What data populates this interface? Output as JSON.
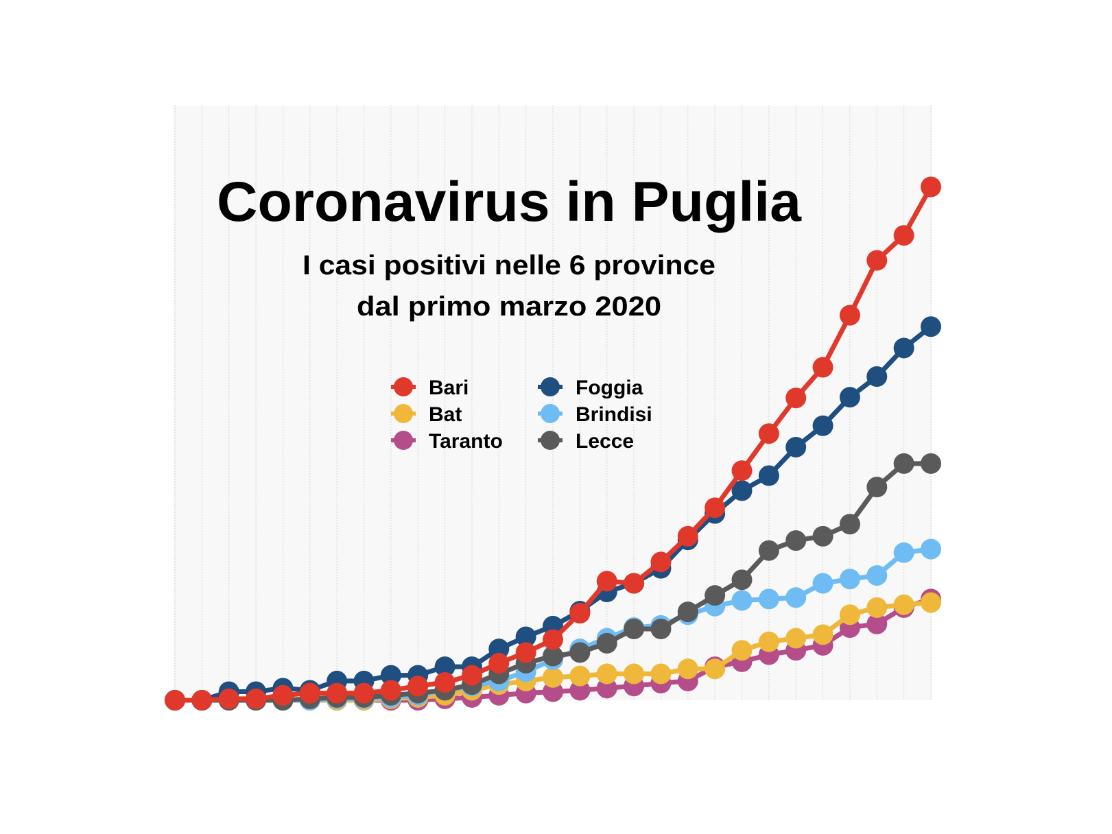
{
  "chart_data": {
    "type": "line",
    "title": "Coronavirus in Puglia",
    "subtitle": [
      "I casi positivi nelle 6 province",
      "dal primo marzo 2020"
    ],
    "categories": [
      null,
      null,
      null,
      null,
      null,
      null,
      null,
      null,
      null,
      null,
      null,
      null,
      null,
      null,
      null,
      null,
      null,
      null,
      null,
      null,
      null,
      null,
      null,
      null,
      null,
      null,
      null,
      null,
      null
    ],
    "ylim": [
      0,
      834
    ],
    "grid": true,
    "series": [
      {
        "name": "Bari",
        "color": "#e0392b",
        "values": [
          0,
          0,
          2,
          2,
          7,
          10,
          10,
          10,
          14,
          20,
          25,
          35,
          52,
          67,
          85,
          122,
          167,
          164,
          194,
          230,
          270,
          322,
          374,
          424,
          467,
          540,
          617,
          652,
          720
        ]
      },
      {
        "name": "Bat",
        "color": "#f0b83a",
        "values": [
          0,
          0,
          0,
          0,
          0,
          0,
          0,
          0,
          2,
          4,
          7,
          14,
          22,
          27,
          32,
          34,
          37,
          37,
          37,
          44,
          44,
          70,
          82,
          87,
          92,
          120,
          130,
          134,
          137
        ]
      },
      {
        "name": "Taranto",
        "color": "#b44d8a",
        "values": [
          0,
          0,
          0,
          0,
          0,
          0,
          0,
          0,
          0,
          0,
          2,
          4,
          7,
          10,
          12,
          14,
          17,
          20,
          24,
          27,
          47,
          54,
          64,
          70,
          77,
          102,
          107,
          130,
          142
        ]
      },
      {
        "name": "Foggia",
        "color": "#1f4e80",
        "values": [
          0,
          0,
          12,
          12,
          17,
          14,
          27,
          27,
          35,
          35,
          47,
          47,
          72,
          89,
          104,
          125,
          152,
          164,
          185,
          225,
          262,
          294,
          315,
          355,
          385,
          425,
          454,
          494,
          524
        ]
      },
      {
        "name": "Brindisi",
        "color": "#6fbcf5",
        "values": [
          0,
          0,
          0,
          0,
          0,
          0,
          2,
          2,
          4,
          7,
          14,
          20,
          27,
          40,
          57,
          72,
          87,
          102,
          105,
          120,
          132,
          140,
          142,
          144,
          164,
          170,
          175,
          207,
          212
        ]
      },
      {
        "name": "Lecce",
        "color": "#5a5a5a",
        "values": [
          0,
          0,
          0,
          0,
          0,
          2,
          4,
          4,
          7,
          10,
          14,
          22,
          37,
          52,
          62,
          67,
          80,
          100,
          100,
          124,
          147,
          169,
          210,
          224,
          230,
          247,
          299,
          332,
          332
        ]
      }
    ]
  }
}
